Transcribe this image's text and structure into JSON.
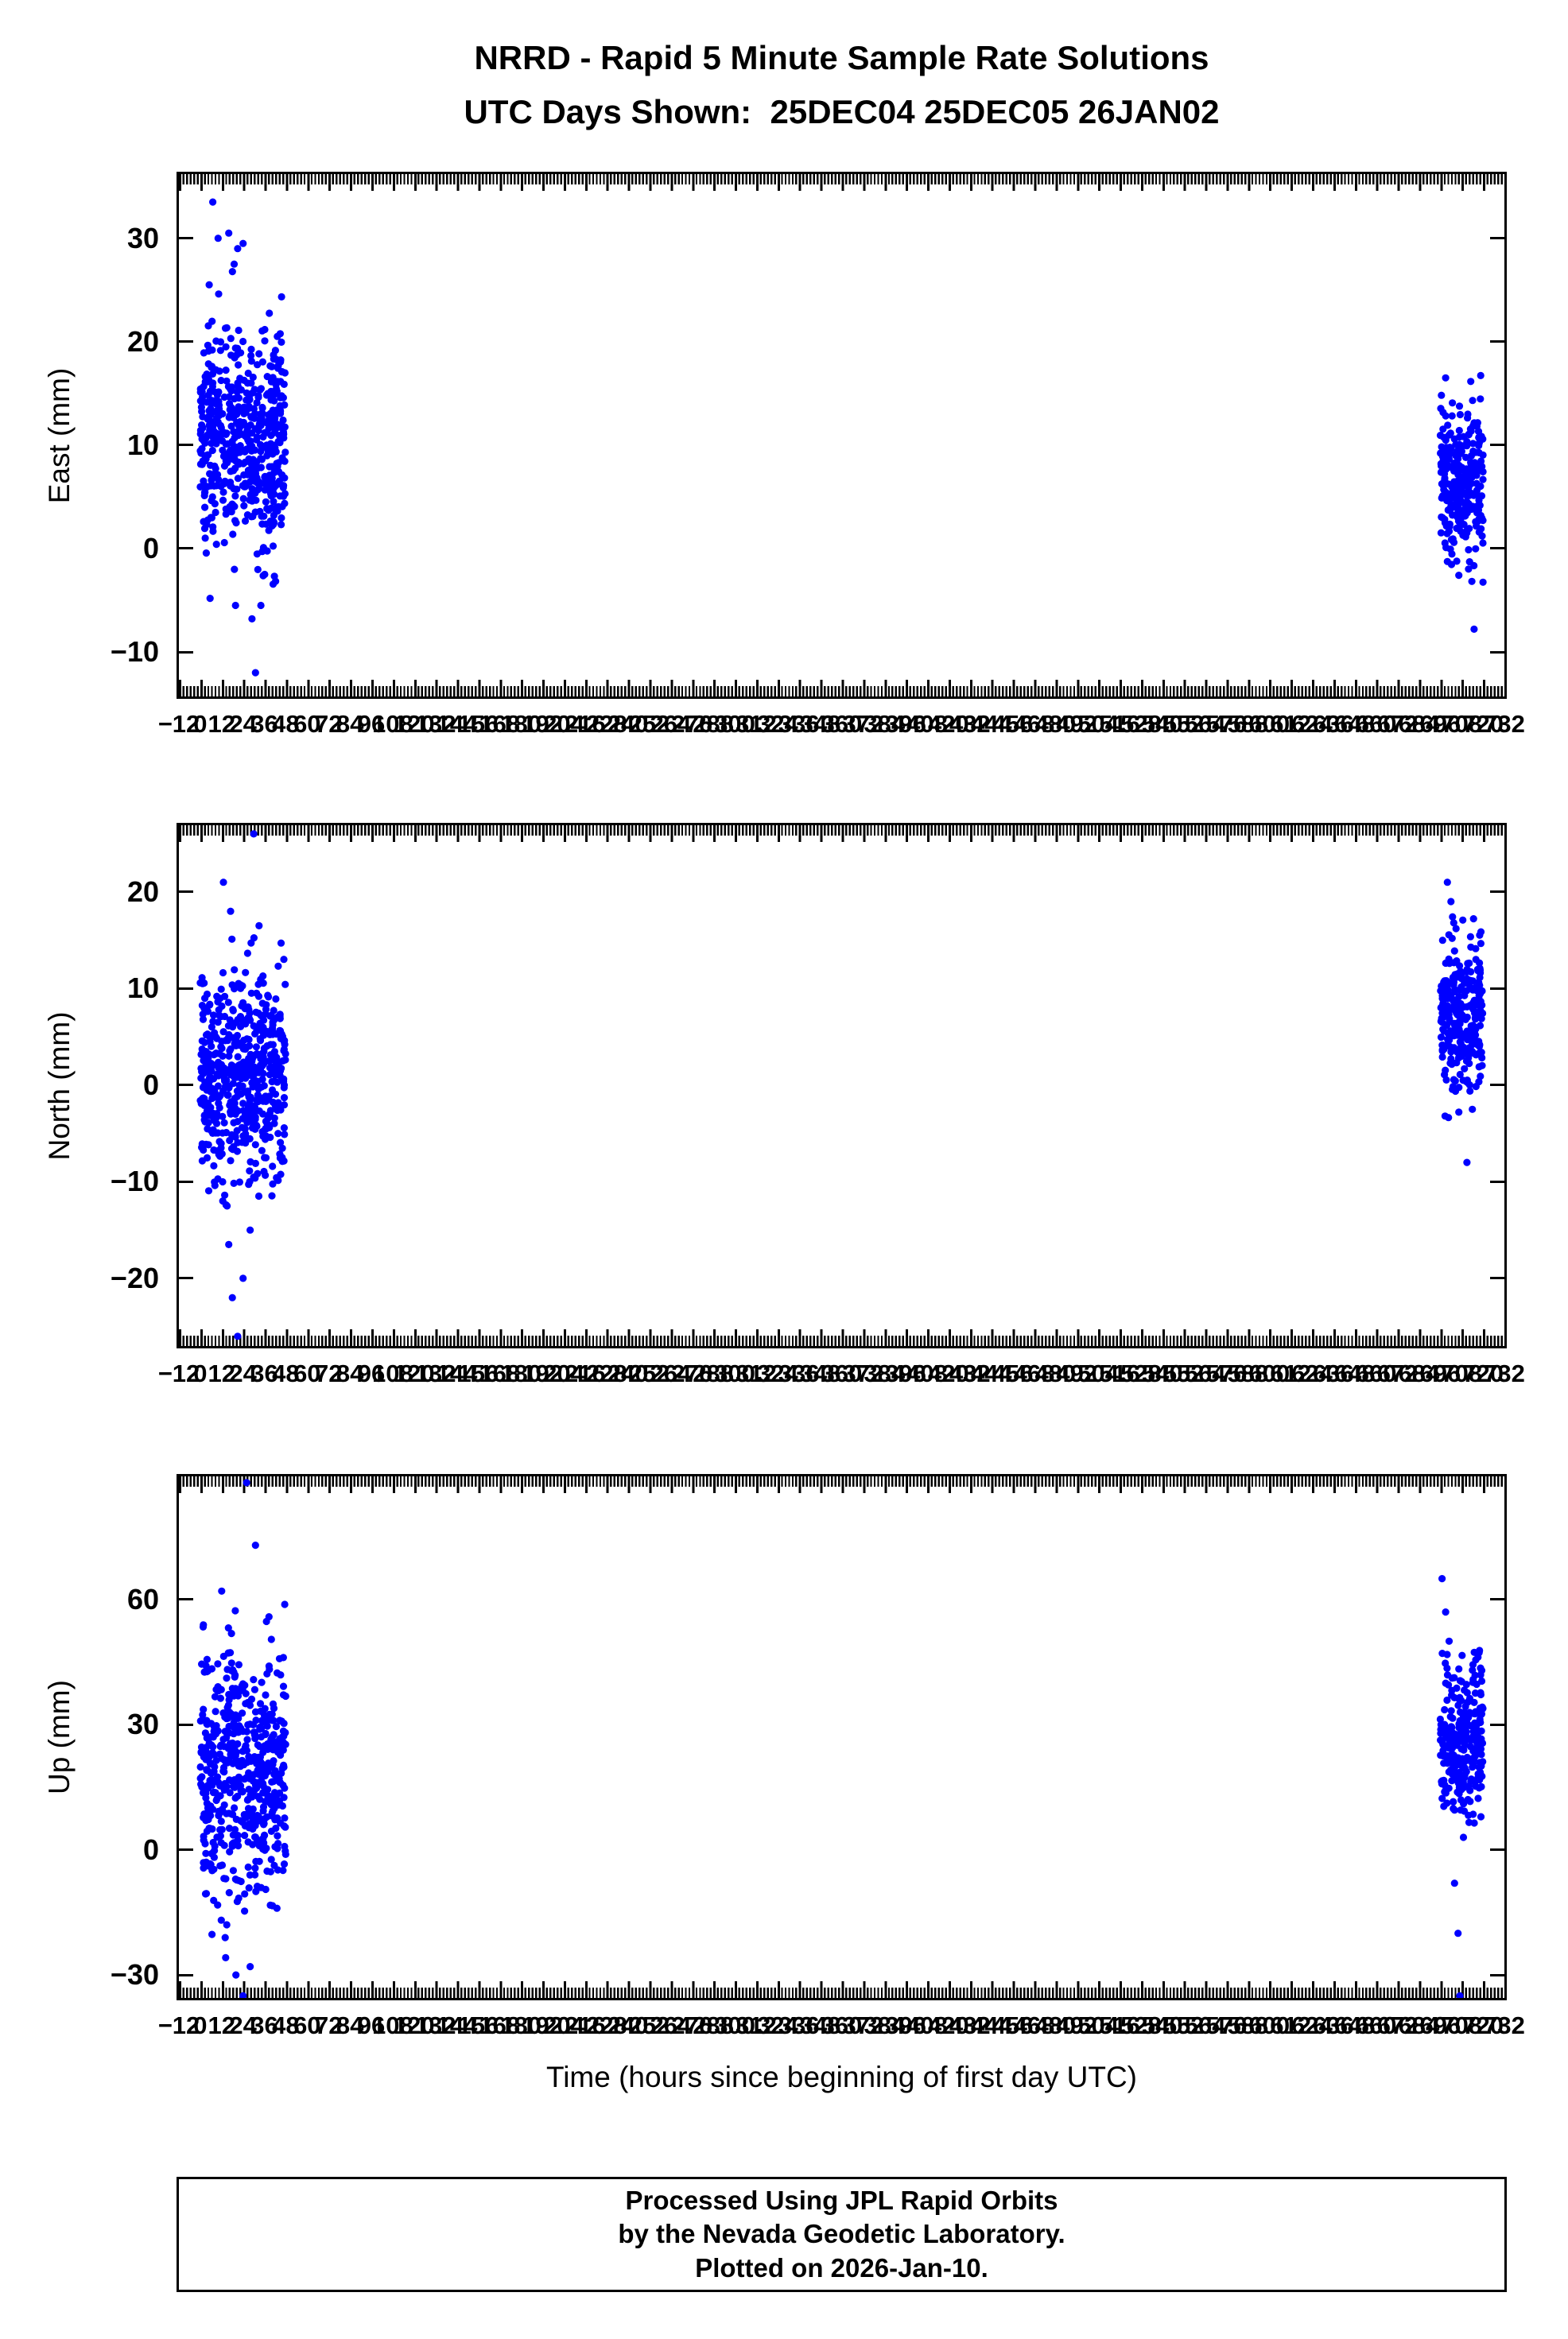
{
  "title": "NRRD - Rapid 5 Minute Sample Rate Solutions",
  "subtitle": "UTC Days Shown:  25DEC04 25DEC05 26JAN02",
  "xlabel": "Time (hours since beginning of first day UTC)",
  "footer": {
    "line1": "Processed Using JPL Rapid Orbits",
    "line2": "by the Nevada Geodetic Laboratory.",
    "line3": "Plotted on 2026-Jan-10."
  },
  "chart_data": {
    "type": "scatter",
    "marker_color": "#0000ff",
    "marker_radius": 4.6,
    "grid": false,
    "x_axis": {
      "min": -12,
      "max": 732,
      "label_tick_step": 12,
      "minor_tick_step": 2,
      "tick_labels_overlap": true
    },
    "panels": [
      {
        "name": "east",
        "ylabel": "East (mm)",
        "ylim": [
          -14.3,
          36.2
        ],
        "yticks": [
          -10,
          0,
          10,
          20,
          30
        ],
        "clusters": [
          {
            "x0": 0,
            "x1": 48,
            "n": 560,
            "mean": 10.5,
            "std": 5.4,
            "min": -7.5,
            "max": 27
          },
          {
            "x0": 696,
            "x1": 720,
            "n": 280,
            "mean": 6.0,
            "std": 3.8,
            "min": -8.0,
            "max": 16.8
          }
        ],
        "outliers": [
          [
            7,
            33.5
          ],
          [
            10,
            30
          ],
          [
            16,
            30.5
          ],
          [
            21,
            29
          ],
          [
            24,
            29.5
          ],
          [
            19,
            27.5
          ],
          [
            31,
            -12
          ],
          [
            29,
            -6.8
          ],
          [
            34,
            -5.5
          ],
          [
            5,
            25.5
          ],
          [
            699,
            16.5
          ],
          [
            715,
            -7.8
          ]
        ]
      },
      {
        "name": "north",
        "ylabel": "North (mm)",
        "ylim": [
          -27,
          26.9
        ],
        "yticks": [
          -20,
          -10,
          0,
          10,
          20
        ],
        "clusters": [
          {
            "x0": 0,
            "x1": 48,
            "n": 560,
            "mean": 1.2,
            "std": 5.8,
            "min": -13.5,
            "max": 15.5
          },
          {
            "x0": 696,
            "x1": 720,
            "n": 280,
            "mean": 7.0,
            "std": 4.2,
            "min": -3.5,
            "max": 18
          }
        ],
        "outliers": [
          [
            18,
            -22
          ],
          [
            21,
            -26
          ],
          [
            24,
            -20
          ],
          [
            16,
            -16.5
          ],
          [
            28,
            -15
          ],
          [
            30,
            26
          ],
          [
            13,
            21
          ],
          [
            17,
            18
          ],
          [
            33,
            16.5
          ],
          [
            700,
            21
          ],
          [
            702,
            19
          ],
          [
            711,
            -8
          ],
          [
            714,
            -2.5
          ],
          [
            716,
            13
          ]
        ]
      },
      {
        "name": "up",
        "ylabel": "Up (mm)",
        "ylim": [
          -35.5,
          89.5
        ],
        "yticks": [
          -30,
          0,
          30,
          60
        ],
        "clusters": [
          {
            "x0": 0,
            "x1": 48,
            "n": 560,
            "mean": 18,
            "std": 14,
            "min": -26,
            "max": 62
          },
          {
            "x0": 696,
            "x1": 720,
            "n": 280,
            "mean": 27,
            "std": 10,
            "min": 4,
            "max": 48
          }
        ],
        "outliers": [
          [
            26,
            88
          ],
          [
            31,
            73
          ],
          [
            12,
            62
          ],
          [
            20,
            -30
          ],
          [
            24,
            -35
          ],
          [
            28,
            -28
          ],
          [
            697,
            65
          ],
          [
            699,
            57
          ],
          [
            701,
            50
          ],
          [
            704,
            -8
          ],
          [
            706,
            -20
          ],
          [
            707,
            -35
          ],
          [
            709,
            3
          ]
        ]
      }
    ]
  }
}
